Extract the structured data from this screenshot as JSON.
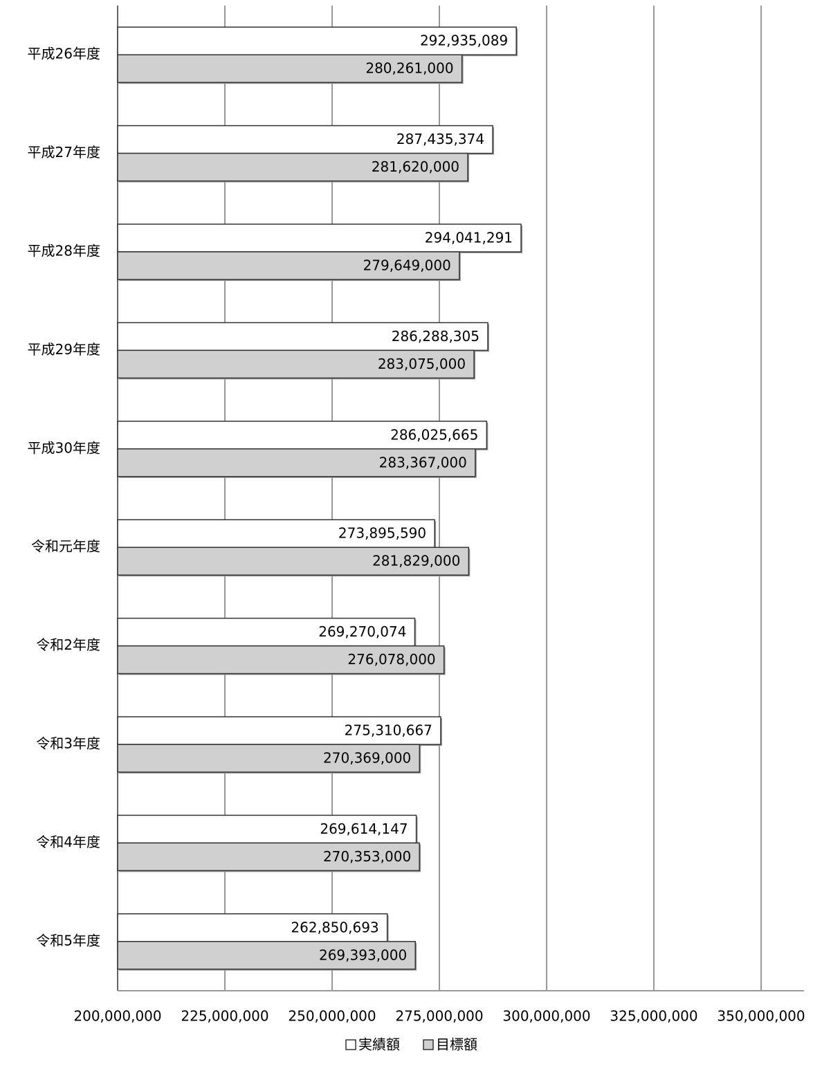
{
  "chart_data": {
    "type": "hbar",
    "categories": [
      "平成26年度",
      "平成27年度",
      "平成28年度",
      "平成29年度",
      "平成30年度",
      "令和元年度",
      "令和2年度",
      "令和3年度",
      "令和4年度",
      "令和5年度"
    ],
    "series": [
      {
        "name": "実績額",
        "color": "#ffffff",
        "values": [
          292935089,
          287435374,
          294041291,
          286288305,
          286025665,
          273895590,
          269270074,
          275310667,
          269614147,
          262850693
        ],
        "value_labels": [
          "292,935,089",
          "287,435,374",
          "294,041,291",
          "286,288,305",
          "286,025,665",
          "273,895,590",
          "269,270,074",
          "275,310,667",
          "269,614,147",
          "262,850,693"
        ]
      },
      {
        "name": "目標額",
        "color": "#d0d0d0",
        "values": [
          280261000,
          281620000,
          279649000,
          283075000,
          283367000,
          281829000,
          276078000,
          270369000,
          270353000,
          269393000
        ],
        "value_labels": [
          "280,261,000",
          "281,620,000",
          "279,649,000",
          "283,075,000",
          "283,367,000",
          "281,829,000",
          "276,078,000",
          "270,369,000",
          "270,353,000",
          "269,393,000"
        ]
      }
    ],
    "xlim": [
      200000000,
      360000000
    ],
    "xticks": [
      {
        "value": 200000000,
        "label": "200,000,000"
      },
      {
        "value": 225000000,
        "label": "225,000,000"
      },
      {
        "value": 250000000,
        "label": "250,000,000"
      },
      {
        "value": 275000000,
        "label": "275,000,000"
      },
      {
        "value": 300000000,
        "label": "300,000,000"
      },
      {
        "value": 325000000,
        "label": "325,000,000"
      },
      {
        "value": 350000000,
        "label": "350,000,000"
      }
    ],
    "grid": true,
    "legend": "bottom"
  }
}
